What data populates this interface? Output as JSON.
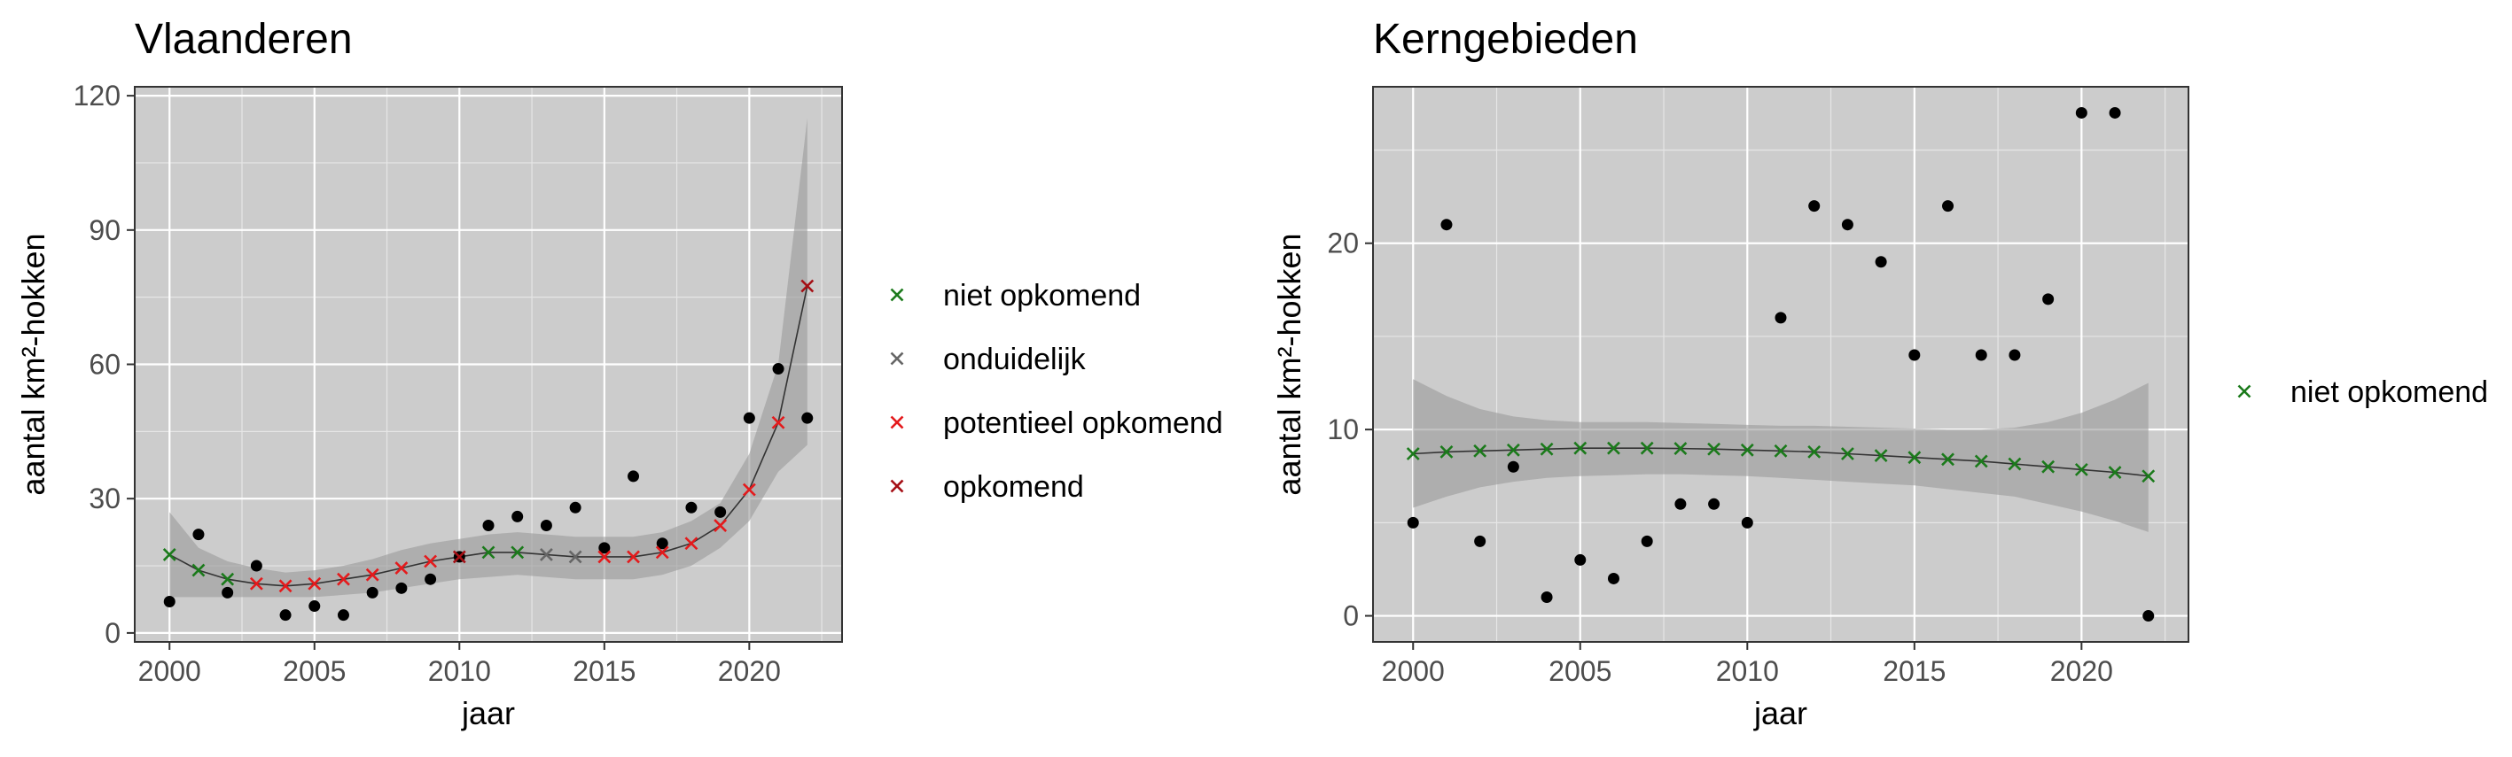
{
  "chart_data": [
    {
      "type": "scatter",
      "title": "Vlaanderen",
      "xlabel": "jaar",
      "ylabel": "aantal km²-hokken",
      "xlim": [
        1998.8,
        2023.2
      ],
      "ylim": [
        -2,
        122
      ],
      "xticks": [
        2000,
        2005,
        2010,
        2015,
        2020
      ],
      "yticks": [
        0,
        30,
        60,
        90,
        120
      ],
      "grid": true,
      "legend": "right",
      "observed": {
        "x": [
          2000,
          2001,
          2002,
          2003,
          2004,
          2005,
          2006,
          2007,
          2008,
          2009,
          2010,
          2011,
          2012,
          2013,
          2014,
          2015,
          2016,
          2017,
          2018,
          2019,
          2020,
          2021,
          2022
        ],
        "y": [
          7,
          22,
          9,
          15,
          4,
          6,
          4,
          9,
          10,
          12,
          17,
          24,
          26,
          24,
          28,
          19,
          35,
          20,
          28,
          27,
          48,
          59,
          48
        ]
      },
      "trend": {
        "x": [
          2000,
          2001,
          2002,
          2003,
          2004,
          2005,
          2006,
          2007,
          2008,
          2009,
          2010,
          2011,
          2012,
          2013,
          2014,
          2015,
          2016,
          2017,
          2018,
          2019,
          2020,
          2021,
          2022
        ],
        "y": [
          17.5,
          14,
          12,
          11,
          10.5,
          11,
          12,
          13,
          14.5,
          16,
          17,
          18,
          18,
          17.5,
          17,
          17,
          17,
          18,
          20,
          24,
          32,
          47,
          77.5
        ],
        "lower": [
          8,
          8,
          8,
          8,
          8,
          8,
          8.5,
          9,
          10,
          11,
          12,
          12.5,
          13,
          12.5,
          12,
          12,
          12,
          13,
          15,
          19,
          25,
          36,
          42
        ],
        "upper": [
          27,
          19,
          16,
          14.5,
          13.5,
          14,
          15,
          16.5,
          18.5,
          20,
          21,
          22,
          22.5,
          22,
          21.5,
          21.5,
          21.5,
          22.5,
          25,
          29,
          40,
          60,
          115
        ],
        "category": [
          "niet opkomend",
          "niet opkomend",
          "niet opkomend",
          "potentieel opkomend",
          "potentieel opkomend",
          "potentieel opkomend",
          "potentieel opkomend",
          "potentieel opkomend",
          "potentieel opkomend",
          "potentieel opkomend",
          "opkomend",
          "niet opkomend",
          "niet opkomend",
          "onduidelijk",
          "onduidelijk",
          "potentieel opkomend",
          "potentieel opkomend",
          "potentieel opkomend",
          "potentieel opkomend",
          "potentieel opkomend",
          "potentieel opkomend",
          "potentieel opkomend",
          "opkomend"
        ]
      },
      "legend_entries": [
        {
          "label": "niet opkomend",
          "color": "#1b7a1b"
        },
        {
          "label": "onduidelijk",
          "color": "#666666"
        },
        {
          "label": "potentieel opkomend",
          "color": "#e41a1c"
        },
        {
          "label": "opkomend",
          "color": "#a50f15"
        }
      ]
    },
    {
      "type": "scatter",
      "title": "Kerngebieden",
      "xlabel": "jaar",
      "ylabel": "aantal km²-hokken",
      "xlim": [
        1998.8,
        2023.2
      ],
      "ylim": [
        -1.4,
        28.4
      ],
      "xticks": [
        2000,
        2005,
        2010,
        2015,
        2020
      ],
      "yticks": [
        0,
        10,
        20
      ],
      "grid": true,
      "legend": "right",
      "observed": {
        "x": [
          2000,
          2001,
          2002,
          2003,
          2004,
          2005,
          2006,
          2007,
          2008,
          2009,
          2010,
          2011,
          2012,
          2013,
          2014,
          2015,
          2016,
          2017,
          2018,
          2019,
          2020,
          2021,
          2022
        ],
        "y": [
          5,
          21,
          4,
          8,
          1,
          3,
          2,
          4,
          6,
          6,
          5,
          16,
          22,
          21,
          19,
          14,
          22,
          14,
          14,
          17,
          27,
          27,
          0
        ]
      },
      "trend": {
        "x": [
          2000,
          2001,
          2002,
          2003,
          2004,
          2005,
          2006,
          2007,
          2008,
          2009,
          2010,
          2011,
          2012,
          2013,
          2014,
          2015,
          2016,
          2017,
          2018,
          2019,
          2020,
          2021,
          2022
        ],
        "y": [
          8.7,
          8.8,
          8.85,
          8.9,
          8.95,
          9.0,
          9.0,
          9.0,
          8.98,
          8.95,
          8.9,
          8.85,
          8.8,
          8.7,
          8.6,
          8.5,
          8.4,
          8.3,
          8.15,
          8.0,
          7.85,
          7.7,
          7.5
        ],
        "lower": [
          5.8,
          6.4,
          6.9,
          7.2,
          7.4,
          7.5,
          7.55,
          7.6,
          7.6,
          7.55,
          7.5,
          7.4,
          7.3,
          7.2,
          7.1,
          7.0,
          6.8,
          6.6,
          6.4,
          6.0,
          5.6,
          5.1,
          4.5
        ],
        "upper": [
          12.7,
          11.8,
          11.1,
          10.7,
          10.5,
          10.4,
          10.4,
          10.4,
          10.35,
          10.3,
          10.25,
          10.2,
          10.2,
          10.15,
          10.1,
          10.05,
          10.0,
          10.0,
          10.1,
          10.4,
          10.9,
          11.6,
          12.5
        ],
        "category": [
          "niet opkomend",
          "niet opkomend",
          "niet opkomend",
          "niet opkomend",
          "niet opkomend",
          "niet opkomend",
          "niet opkomend",
          "niet opkomend",
          "niet opkomend",
          "niet opkomend",
          "niet opkomend",
          "niet opkomend",
          "niet opkomend",
          "niet opkomend",
          "niet opkomend",
          "niet opkomend",
          "niet opkomend",
          "niet opkomend",
          "niet opkomend",
          "niet opkomend",
          "niet opkomend",
          "niet opkomend",
          "niet opkomend"
        ]
      },
      "legend_entries": [
        {
          "label": "niet opkomend",
          "color": "#1b7a1b"
        }
      ]
    }
  ]
}
